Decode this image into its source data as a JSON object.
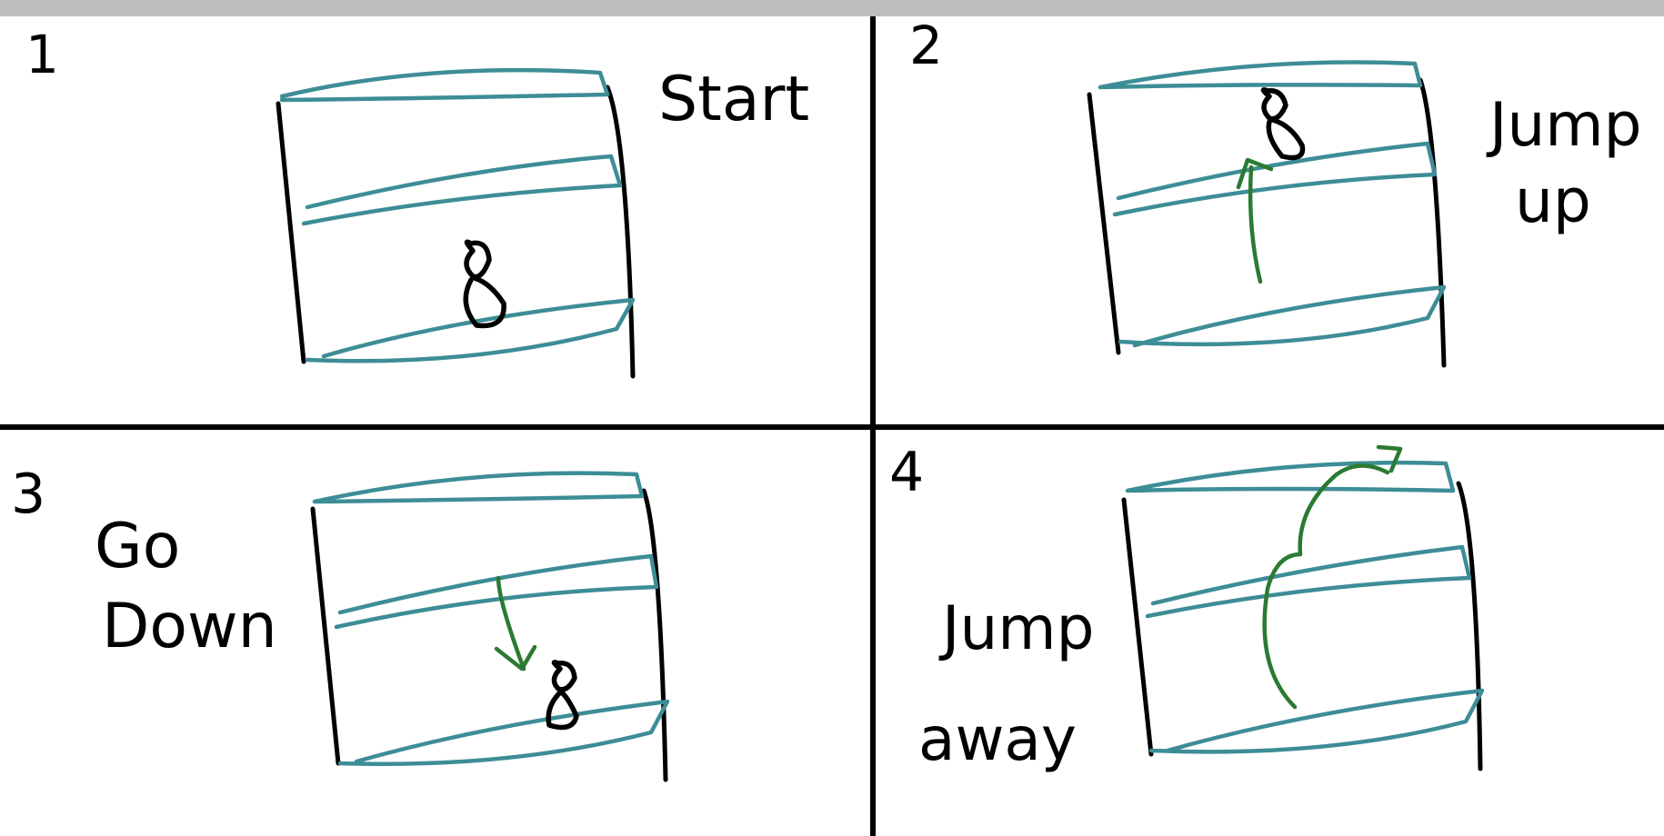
{
  "colors": {
    "top_bar": "#bdbdbd",
    "shelf": "#3d8d96",
    "arrow": "#2b7a32",
    "ink": "#000000",
    "background": "#ffffff"
  },
  "panels": [
    {
      "number": "1",
      "caption_lines": [
        "Start"
      ]
    },
    {
      "number": "2",
      "caption_lines": [
        "Jump",
        "up"
      ]
    },
    {
      "number": "3",
      "caption_lines": [
        "Go",
        "Down"
      ]
    },
    {
      "number": "4",
      "caption_lines": [
        "Jump",
        "away"
      ]
    }
  ]
}
